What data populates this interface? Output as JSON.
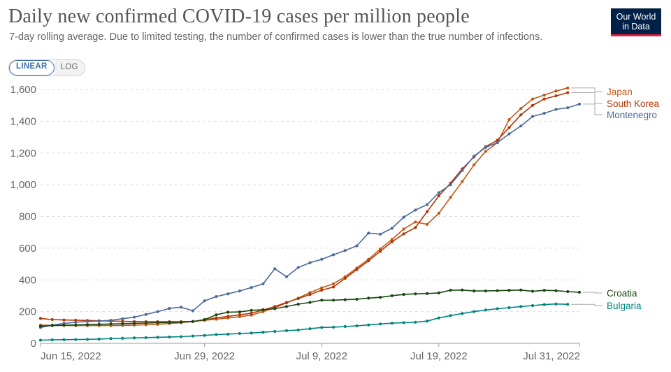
{
  "header": {
    "title": "Daily new confirmed COVID-19 cases per million people",
    "subtitle": "7-day rolling average. Due to limited testing, the number of confirmed cases is lower than the true number of infections.",
    "logo_line1": "Our World",
    "logo_line2": "in Data"
  },
  "controls": {
    "linear_label": "LINEAR",
    "log_label": "LOG"
  },
  "chart_data": {
    "type": "line",
    "title": "Daily new confirmed COVID-19 cases per million people",
    "xlabel": "",
    "ylabel": "",
    "ylim": [
      0,
      1600
    ],
    "yticks": [
      0,
      200,
      400,
      600,
      800,
      1000,
      1200,
      1400,
      1600
    ],
    "ytick_labels": [
      "0",
      "200",
      "400",
      "600",
      "800",
      "1,000",
      "1,200",
      "1,400",
      "1,600"
    ],
    "xticks": [
      0,
      14,
      24,
      34,
      46
    ],
    "xtick_labels": [
      "Jun 15, 2022",
      "Jun 29, 2022",
      "Jul 9, 2022",
      "Jul 19, 2022",
      "Jul 31, 2022"
    ],
    "x_start": "Jun 15, 2022",
    "x_end": "Jul 31, 2022",
    "grid": true,
    "legend": "right, line-end labels",
    "series": [
      {
        "name": "Japan",
        "color": "#c05917",
        "values": [
          115,
          113,
          113,
          112,
          112,
          112,
          112,
          113,
          115,
          117,
          120,
          125,
          130,
          138,
          145,
          152,
          160,
          168,
          178,
          200,
          225,
          255,
          285,
          320,
          350,
          375,
          420,
          475,
          530,
          595,
          655,
          720,
          765,
          750,
          820,
          920,
          1020,
          1125,
          1210,
          1265,
          1410,
          1480,
          1540,
          1565,
          1590,
          1610
        ]
      },
      {
        "name": "South Korea",
        "color": "#b13507",
        "values": [
          157,
          150,
          147,
          146,
          144,
          142,
          140,
          139,
          137,
          136,
          136,
          136,
          136,
          138,
          148,
          160,
          170,
          180,
          190,
          210,
          232,
          258,
          282,
          308,
          335,
          355,
          410,
          465,
          520,
          580,
          640,
          690,
          730,
          830,
          930,
          1010,
          1100,
          1175,
          1240,
          1280,
          1360,
          1440,
          1500,
          1540,
          1560,
          1580
        ]
      },
      {
        "name": "Montenegro",
        "color": "#4c6a9c",
        "values": [
          100,
          115,
          125,
          133,
          138,
          140,
          145,
          155,
          165,
          182,
          200,
          220,
          228,
          205,
          268,
          295,
          312,
          330,
          352,
          375,
          470,
          420,
          478,
          508,
          530,
          558,
          585,
          615,
          695,
          688,
          725,
          795,
          840,
          875,
          950,
          1000,
          1090,
          1180,
          1235,
          1265,
          1320,
          1370,
          1430,
          1450,
          1475,
          1485,
          1508
        ]
      },
      {
        "name": "Croatia",
        "color": "#18470f",
        "values": [
          108,
          112,
          114,
          116,
          118,
          120,
          122,
          124,
          126,
          128,
          130,
          132,
          134,
          137,
          150,
          180,
          196,
          198,
          208,
          212,
          218,
          232,
          247,
          258,
          272,
          272,
          275,
          278,
          285,
          290,
          300,
          308,
          312,
          314,
          318,
          335,
          336,
          330,
          330,
          332,
          334,
          336,
          328,
          334,
          332,
          326,
          322
        ]
      },
      {
        "name": "Bulgaria",
        "color": "#00847e",
        "values": [
          20,
          22,
          23,
          24,
          25,
          27,
          30,
          32,
          34,
          36,
          38,
          40,
          42,
          46,
          50,
          55,
          58,
          62,
          65,
          70,
          75,
          80,
          84,
          92,
          100,
          102,
          106,
          110,
          116,
          122,
          127,
          130,
          133,
          140,
          160,
          175,
          188,
          200,
          210,
          218,
          225,
          232,
          238,
          244,
          248,
          246
        ]
      }
    ]
  }
}
